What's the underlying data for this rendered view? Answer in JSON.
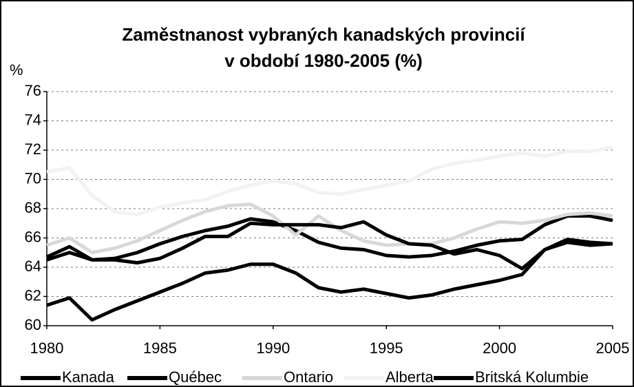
{
  "chart_data": {
    "type": "line",
    "title": "Zaměstnanost vybraných kanadských provincií",
    "subtitle": "v období 1980-2005 (%)",
    "y_label": "%",
    "x": [
      1980,
      1981,
      1982,
      1983,
      1984,
      1985,
      1986,
      1987,
      1988,
      1989,
      1990,
      1991,
      1992,
      1993,
      1994,
      1995,
      1996,
      1997,
      1998,
      1999,
      2000,
      2001,
      2002,
      2003,
      2004,
      2005
    ],
    "xlim": [
      1980,
      2005
    ],
    "xticks": [
      1980,
      1985,
      1990,
      1995,
      2000,
      2005
    ],
    "ylim": [
      60,
      76
    ],
    "yticks": [
      60,
      62,
      64,
      66,
      68,
      70,
      72,
      74,
      76
    ],
    "grid": true,
    "legend": "bottom",
    "series": [
      {
        "name": "Kanada",
        "color": "#000000",
        "values": [
          64.7,
          65.4,
          64.5,
          64.6,
          65.0,
          65.6,
          66.1,
          66.5,
          66.8,
          67.3,
          67.1,
          66.5,
          65.7,
          65.3,
          65.2,
          64.8,
          64.7,
          64.8,
          65.1,
          65.5,
          65.8,
          65.9,
          66.9,
          67.5,
          67.5,
          67.2
        ]
      },
      {
        "name": "Québec",
        "color": "#000000",
        "values": [
          61.4,
          61.9,
          60.4,
          61.1,
          61.7,
          62.3,
          62.9,
          63.6,
          63.8,
          64.2,
          64.2,
          63.6,
          62.6,
          62.3,
          62.5,
          62.2,
          61.9,
          62.1,
          62.5,
          62.8,
          63.1,
          63.5,
          65.2,
          65.7,
          65.5,
          65.6
        ]
      },
      {
        "name": "Ontario",
        "color": "#d8d8d8",
        "values": [
          65.5,
          66.0,
          65.0,
          65.3,
          65.8,
          66.5,
          67.2,
          67.8,
          68.2,
          68.3,
          67.5,
          66.2,
          67.5,
          66.5,
          65.8,
          65.5,
          65.6,
          65.6,
          66.0,
          66.6,
          67.1,
          67.0,
          67.2,
          67.6,
          67.7,
          67.5
        ]
      },
      {
        "name": "Alberta",
        "color": "#f2f2f2",
        "values": [
          70.5,
          70.8,
          68.9,
          67.8,
          67.6,
          68.1,
          68.4,
          68.6,
          69.2,
          69.6,
          69.9,
          69.7,
          69.1,
          69.0,
          69.3,
          69.6,
          69.9,
          70.7,
          71.1,
          71.3,
          71.6,
          71.8,
          71.6,
          71.9,
          71.9,
          72.2
        ]
      },
      {
        "name": "Britská Kolumbie",
        "color": "#000000",
        "values": [
          64.5,
          65.0,
          64.5,
          64.5,
          64.3,
          64.6,
          65.3,
          66.1,
          66.1,
          67.0,
          66.9,
          66.9,
          66.9,
          66.7,
          67.1,
          66.2,
          65.6,
          65.5,
          64.9,
          65.2,
          64.8,
          63.9,
          65.2,
          65.9,
          65.7,
          65.6
        ]
      }
    ]
  }
}
